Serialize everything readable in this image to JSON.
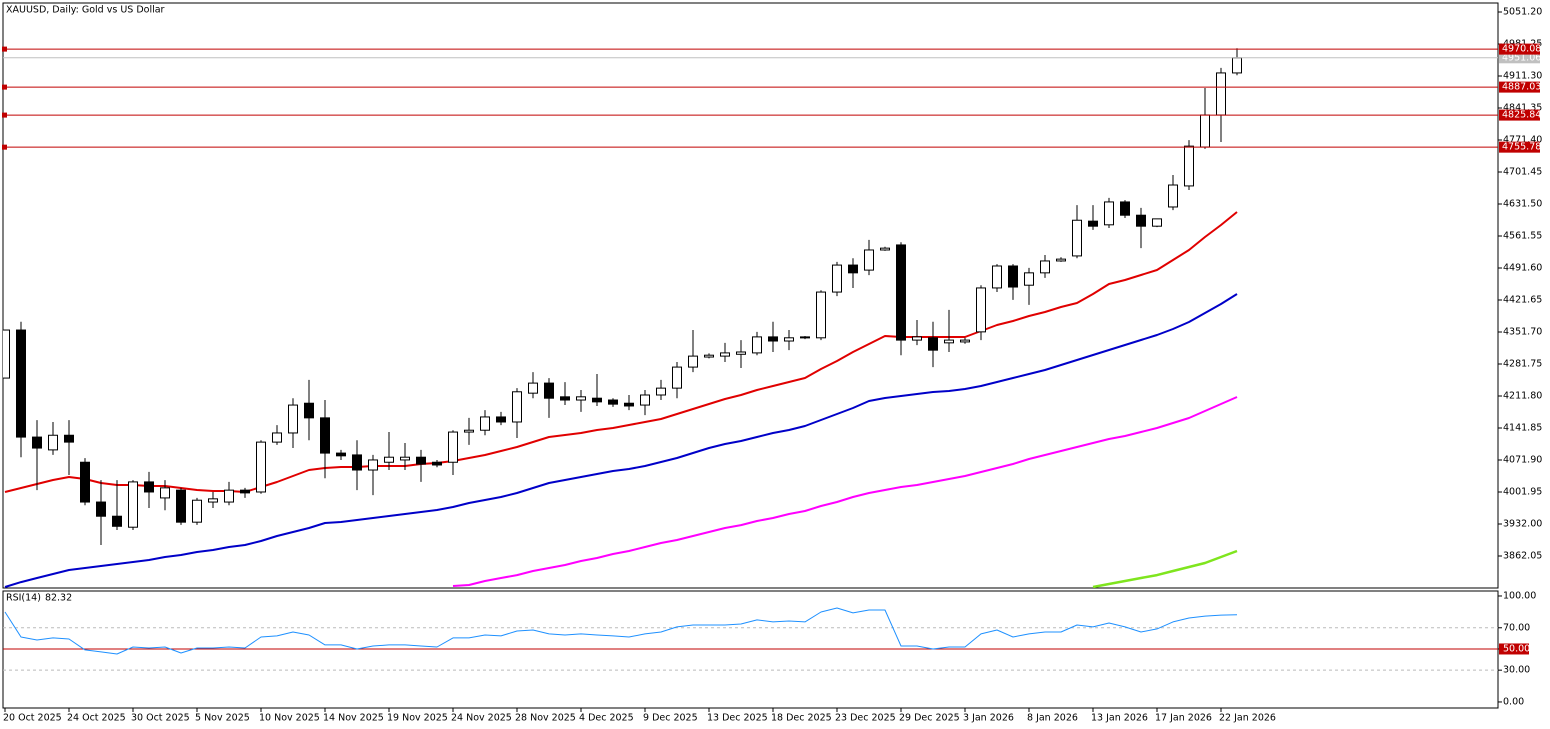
{
  "chart_data": [
    {
      "type": "candlestick",
      "title": "XAUUSD, Daily:  Gold vs US Dollar",
      "categories": [
        "20 Oct 2025",
        null,
        null,
        null,
        "24 Oct 2025",
        null,
        null,
        null,
        "30 Oct 2025",
        null,
        null,
        null,
        "5 Nov 2025",
        null,
        null,
        null,
        "10 Nov 2025",
        null,
        null,
        null,
        "14 Nov 2025",
        null,
        null,
        null,
        "19 Nov 2025",
        null,
        null,
        null,
        "24 Nov 2025",
        null,
        null,
        null,
        "28 Nov 2025",
        null,
        null,
        null,
        "4 Dec 2025",
        null,
        null,
        null,
        "9 Dec 2025",
        null,
        null,
        null,
        "13 Dec 2025",
        null,
        null,
        null,
        "18 Dec 2025",
        null,
        null,
        null,
        "23 Dec 2025",
        null,
        null,
        null,
        "29 Dec 2025",
        null,
        null,
        null,
        "3 Jan 2026",
        null,
        null,
        null,
        "8 Jan 2026",
        null,
        null,
        null,
        "13 Jan 2026",
        null,
        null,
        null,
        "17 Jan 2026",
        null,
        null,
        null,
        "22 Jan 2026",
        null
      ],
      "open": [
        4251,
        4356,
        4122,
        4094,
        4126,
        4067,
        3980,
        3949,
        3925,
        4024,
        3989,
        4006,
        3936,
        3980,
        3980,
        4006,
        4002,
        4111,
        4131,
        4196,
        4164,
        4087,
        4083,
        4050,
        4067,
        4072,
        4078,
        4067,
        4067,
        4133,
        4137,
        4166,
        4155,
        4218,
        4240,
        4210,
        4203,
        4207,
        4203,
        4196,
        4192,
        4214,
        4229,
        4275,
        4297,
        4299,
        4303,
        4306,
        4341,
        4332,
        4339,
        4339,
        4439,
        4498,
        4487,
        4531,
        4542,
        4334,
        4339,
        4328,
        4330,
        4352,
        4448,
        4496,
        4454,
        4481,
        4507,
        4518,
        4594,
        4586,
        4636,
        4607,
        4583,
        4625,
        4671,
        4756,
        4826,
        4918
      ],
      "high": [
        4357,
        4374,
        4159,
        4155,
        4159,
        4076,
        4028,
        4028,
        4028,
        4046,
        4028,
        4011,
        3989,
        4002,
        4024,
        4011,
        4115,
        4148,
        4207,
        4247,
        4203,
        4094,
        4115,
        4083,
        4133,
        4109,
        4094,
        4072,
        4137,
        4164,
        4181,
        4177,
        4229,
        4264,
        4251,
        4242,
        4225,
        4260,
        4207,
        4214,
        4225,
        4247,
        4286,
        4356,
        4305,
        4328,
        4334,
        4352,
        4374,
        4356,
        4343,
        4443,
        4505,
        4513,
        4553,
        4538,
        4548,
        4378,
        4374,
        4400,
        4339,
        4454,
        4500,
        4500,
        4492,
        4520,
        4515,
        4629,
        4629,
        4645,
        4640,
        4623,
        4599,
        4695,
        4771,
        4885,
        4929,
        4972
      ],
      "low": [
        4251,
        4078,
        4006,
        4083,
        4039,
        3973,
        3886,
        3919,
        3919,
        3967,
        3962,
        3930,
        3930,
        3967,
        3973,
        3989,
        3998,
        4105,
        4098,
        4115,
        4032,
        4072,
        4006,
        3995,
        4050,
        4050,
        4024,
        4056,
        4039,
        4105,
        4126,
        4148,
        4120,
        4207,
        4164,
        4192,
        4177,
        4190,
        4188,
        4181,
        4170,
        4203,
        4207,
        4264,
        4294,
        4286,
        4273,
        4301,
        4308,
        4312,
        4336,
        4334,
        4430,
        4448,
        4476,
        4529,
        4301,
        4323,
        4275,
        4308,
        4326,
        4334,
        4439,
        4422,
        4411,
        4470,
        4505,
        4513,
        4575,
        4579,
        4601,
        4535,
        4581,
        4618,
        4662,
        4752,
        4767,
        4913
      ],
      "close": [
        4356,
        4122,
        4098,
        4126,
        4111,
        3980,
        3949,
        3927,
        4024,
        4002,
        4011,
        3936,
        3984,
        3987,
        4006,
        4000,
        4111,
        4131,
        4192,
        4164,
        4087,
        4081,
        4050,
        4072,
        4078,
        4078,
        4063,
        4061,
        4133,
        4137,
        4166,
        4155,
        4221,
        4240,
        4207,
        4203,
        4210,
        4199,
        4194,
        4190,
        4214,
        4229,
        4275,
        4299,
        4301,
        4306,
        4308,
        4341,
        4332,
        4339,
        4341,
        4439,
        4498,
        4481,
        4531,
        4535,
        4334,
        4341,
        4312,
        4334,
        4334,
        4448,
        4496,
        4450,
        4481,
        4507,
        4511,
        4596,
        4583,
        4636,
        4607,
        4583,
        4599,
        4673,
        4758,
        4826,
        4918,
        4951.06
      ],
      "up_color": "#ffffff",
      "down_color": "#000000",
      "wick_color": "#000000",
      "series": [
        {
          "color": "#e00000",
          "values": [
            4001.9,
            4010.6,
            4019.4,
            4028.1,
            4034.7,
            4030.3,
            4021.6,
            4017.2,
            4017.2,
            4015.0,
            4015.0,
            4010.6,
            4006.3,
            4004.1,
            4004.1,
            4001.9,
            4012.8,
            4023.7,
            4036.9,
            4050.0,
            4054.4,
            4056.5,
            4056.5,
            4058.7,
            4058.7,
            4058.7,
            4063.1,
            4065.3,
            4069.7,
            4076.2,
            4082.8,
            4091.5,
            4100.3,
            4111.2,
            4122.1,
            4126.5,
            4130.9,
            4137.4,
            4141.8,
            4148.3,
            4154.9,
            4161.5,
            4172.4,
            4183.3,
            4194.3,
            4205.2,
            4213.9,
            4224.9,
            4233.6,
            4242.3,
            4251.1,
            4270.8,
            4288.3,
            4307.9,
            4325.4,
            4342.9,
            4340.7,
            4340.7,
            4340.7,
            4340.7,
            4340.7,
            4353.8,
            4366.9,
            4375.7,
            4386.6,
            4395.4,
            4406.3,
            4415.0,
            4434.7,
            4456.6,
            4465.3,
            4476.2,
            4487.2,
            4509.0,
            4530.9,
            4559.3,
            4585.5,
            4614.0
          ]
        },
        {
          "color": "#0000c8",
          "values": [
            3794.2,
            3805.1,
            3813.9,
            3822.6,
            3831.4,
            3835.8,
            3840.1,
            3844.5,
            3848.9,
            3853.2,
            3859.8,
            3864.2,
            3870.7,
            3875.1,
            3881.7,
            3886.0,
            3894.8,
            3905.7,
            3914.5,
            3923.2,
            3934.1,
            3936.3,
            3940.7,
            3945.1,
            3949.4,
            3953.8,
            3958.2,
            3962.5,
            3969.1,
            3977.8,
            3984.4,
            3991.0,
            3999.7,
            4010.6,
            4021.6,
            4028.1,
            4034.7,
            4041.2,
            4047.8,
            4052.2,
            4058.7,
            4067.5,
            4076.2,
            4087.1,
            4098.1,
            4106.8,
            4113.4,
            4122.1,
            4130.9,
            4137.4,
            4146.2,
            4159.3,
            4172.4,
            4185.5,
            4200.8,
            4207.4,
            4211.7,
            4216.1,
            4220.5,
            4222.7,
            4227.0,
            4233.6,
            4242.3,
            4251.1,
            4259.8,
            4268.6,
            4279.5,
            4290.4,
            4301.4,
            4312.3,
            4323.2,
            4334.2,
            4345.1,
            4358.2,
            4373.5,
            4393.2,
            4412.9,
            4434.7
          ]
        },
        {
          "color": "#ff00ff",
          "values": [
            null,
            null,
            null,
            null,
            null,
            null,
            null,
            null,
            null,
            null,
            null,
            null,
            null,
            null,
            null,
            null,
            null,
            null,
            null,
            null,
            null,
            null,
            null,
            null,
            null,
            null,
            null,
            null,
            3796.4,
            3798.6,
            3807.3,
            3813.9,
            3820.4,
            3829.2,
            3835.8,
            3842.3,
            3851.1,
            3857.6,
            3866.4,
            3872.9,
            3881.7,
            3890.4,
            3897.0,
            3905.7,
            3914.5,
            3923.2,
            3929.7,
            3938.5,
            3945.1,
            3953.8,
            3960.4,
            3971.3,
            3980.0,
            3991.0,
            3999.7,
            4006.3,
            4012.8,
            4017.2,
            4023.7,
            4030.3,
            4036.9,
            4045.6,
            4054.4,
            4063.1,
            4074.0,
            4082.8,
            4091.5,
            4100.3,
            4109.0,
            4117.7,
            4124.3,
            4133.0,
            4141.8,
            4152.7,
            4163.7,
            4179.0,
            4194.3,
            4209.6
          ]
        },
        {
          "color": "#7fe51e",
          "values": [
            null,
            null,
            null,
            null,
            null,
            null,
            null,
            null,
            null,
            null,
            null,
            null,
            null,
            null,
            null,
            null,
            null,
            null,
            null,
            null,
            null,
            null,
            null,
            null,
            null,
            null,
            null,
            null,
            null,
            null,
            null,
            null,
            null,
            null,
            null,
            null,
            null,
            null,
            null,
            null,
            null,
            null,
            null,
            null,
            null,
            null,
            null,
            null,
            null,
            null,
            null,
            null,
            null,
            null,
            null,
            null,
            null,
            null,
            null,
            null,
            null,
            null,
            null,
            null,
            null,
            null,
            null,
            null,
            3794.2,
            3800.8,
            3807.3,
            3813.9,
            3820.4,
            3829.2,
            3837.9,
            3846.7,
            3859.8,
            3872.9
          ]
        }
      ],
      "levels": [
        {
          "value": 4970.08,
          "color": "#c00000"
        },
        {
          "value": 4887.03,
          "color": "#c00000"
        },
        {
          "value": 4825.84,
          "color": "#c00000"
        },
        {
          "value": 4755.78,
          "color": "#c00000"
        }
      ],
      "current_price_color": "#c0c0c0",
      "ylim": [
        3792.1,
        5070.87
      ],
      "yticks": [
        {
          "value": 5051.2,
          "label": "5051.20"
        },
        4981.25,
        {
          "value": 4911.3,
          "label": "4911.30"
        },
        4841.35,
        {
          "value": 4771.4,
          "label": "4771.40"
        },
        4701.45,
        {
          "value": 4631.5,
          "label": "4631.50"
        },
        4561.55,
        {
          "value": 4491.6,
          "label": "4491.60"
        },
        4421.65,
        {
          "value": 4351.7,
          "label": "4351.70"
        },
        4281.75,
        {
          "value": 4211.8,
          "label": "4211.80"
        },
        4141.85,
        {
          "value": 4071.9,
          "label": "4071.90"
        },
        4001.95,
        {
          "value": 3932.0,
          "label": "3932.00"
        },
        3862.05
      ],
      "grid": false
    },
    {
      "type": "line",
      "title": "RSI(14)",
      "series": [
        {
          "color": "#1e90ff",
          "values": [
            84.9,
            61.3,
            58.5,
            60.4,
            59.4,
            49.1,
            47.2,
            45.3,
            51.9,
            50.9,
            51.9,
            46.2,
            50.9,
            50.9,
            51.9,
            50.9,
            61.3,
            62.3,
            66.0,
            63.2,
            53.8,
            53.8,
            50.0,
            52.8,
            53.8,
            53.8,
            52.8,
            51.9,
            60.4,
            60.4,
            63.2,
            62.3,
            67.0,
            67.9,
            64.2,
            63.2,
            64.2,
            63.2,
            62.3,
            61.3,
            64.2,
            66.0,
            70.8,
            72.6,
            72.6,
            72.6,
            73.6,
            77.4,
            75.5,
            76.4,
            75.5,
            84.9,
            88.7,
            84.0,
            86.8,
            86.8,
            52.8,
            52.8,
            50.0,
            51.9,
            51.9,
            64.2,
            67.9,
            61.3,
            64.2,
            66.0,
            66.0,
            72.6,
            70.8,
            74.5,
            70.8,
            66.0,
            68.9,
            75.5,
            79.2,
            81.0,
            82.0,
            82.32
          ]
        }
      ],
      "ylim": [
        -5.7,
        104.7
      ],
      "yticks": [
        {
          "value": 100,
          "label": "100.00"
        },
        {
          "value": 70,
          "label": "70.00",
          "line": "dashed"
        },
        {
          "value": 50,
          "label": "50.00",
          "line": "solid",
          "color": "#c00000"
        },
        {
          "value": 30,
          "label": "30.00",
          "line": "dashed"
        },
        {
          "value": 0,
          "label": "0.00"
        }
      ]
    }
  ]
}
